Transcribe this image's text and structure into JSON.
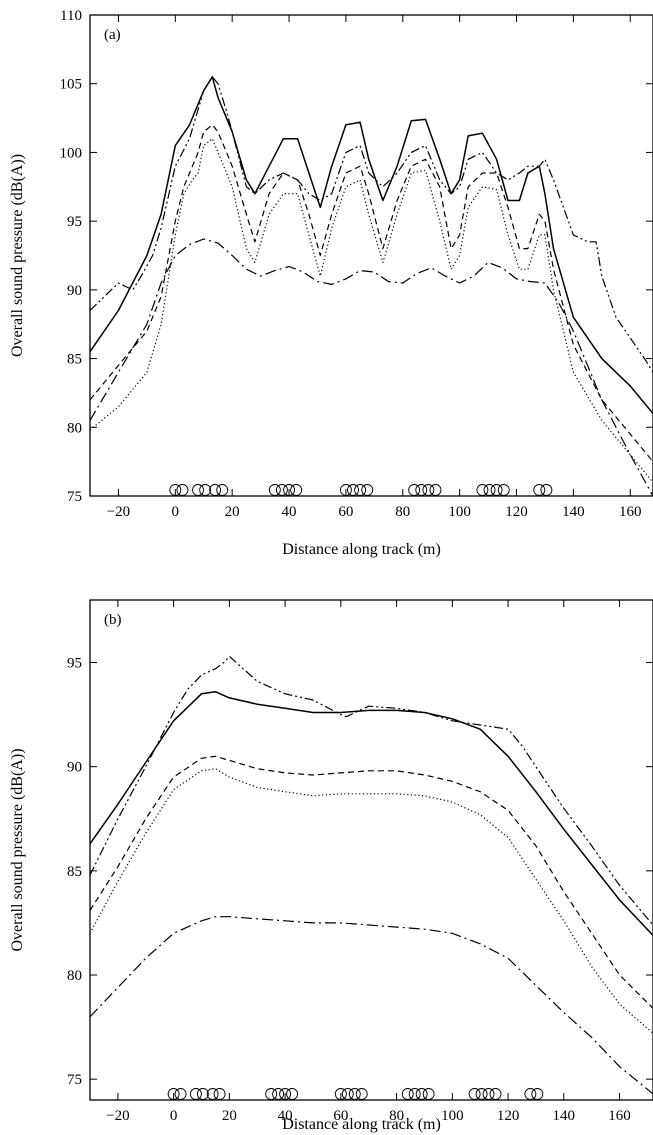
{
  "chart_data": [
    {
      "type": "line",
      "panel_label": "(a)",
      "xlabel": "Distance along track (m)",
      "ylabel": "Overall sound pressure (dB(A))",
      "xlim": [
        -30,
        168
      ],
      "ylim": [
        75,
        110
      ],
      "xticks": [
        -20,
        0,
        20,
        40,
        60,
        80,
        100,
        120,
        140,
        160
      ],
      "yticks": [
        75,
        80,
        85,
        90,
        95,
        100,
        105,
        110
      ],
      "grid": false,
      "legend": "none",
      "axle_markers": [
        0,
        2.5,
        8,
        10.5,
        14,
        16.5,
        35,
        37.5,
        40,
        42.5,
        60,
        62.5,
        65,
        67.5,
        84,
        86.5,
        89,
        91.5,
        108,
        110.5,
        113,
        115.5,
        128,
        130.5
      ],
      "series": [
        {
          "style": "solid",
          "x": [
            -30,
            -20,
            -10,
            -5,
            0,
            5,
            10,
            13,
            15,
            20,
            25,
            28,
            33,
            38,
            43,
            47,
            51,
            55,
            60,
            65,
            68,
            73,
            78,
            83,
            88,
            93,
            97,
            100,
            103,
            108,
            113,
            117,
            121,
            124,
            128,
            130,
            133,
            140,
            150,
            160,
            168
          ],
          "y": [
            85.5,
            88.5,
            92.5,
            95.5,
            100.5,
            102,
            104.5,
            105.5,
            104,
            101.5,
            98,
            97,
            99,
            101,
            101,
            98.5,
            96,
            99,
            102,
            102.2,
            99.5,
            96.5,
            99,
            102.3,
            102.4,
            99.5,
            97,
            98,
            101.2,
            101.4,
            99.5,
            96.5,
            96.5,
            98.5,
            99,
            97,
            93,
            88,
            85,
            83,
            81
          ]
        },
        {
          "style": "dash-dot-dot",
          "x": [
            -30,
            -25,
            -20,
            -15,
            -12,
            -8,
            -5,
            0,
            5,
            10,
            13,
            15,
            18,
            20,
            25,
            28,
            33,
            38,
            43,
            47,
            51,
            55,
            60,
            65,
            68,
            73,
            78,
            83,
            88,
            93,
            97,
            100,
            103,
            108,
            113,
            117,
            121,
            124,
            128,
            130,
            133,
            140,
            145,
            148,
            150,
            155,
            160,
            165,
            168
          ],
          "y": [
            88.5,
            89.5,
            90.5,
            90,
            91,
            92.5,
            94.5,
            99,
            101,
            104.5,
            105.5,
            105,
            103,
            101.5,
            97.5,
            97,
            98,
            98.5,
            98,
            97,
            96.5,
            97,
            100,
            100.5,
            98.5,
            97.5,
            98.5,
            100,
            100.5,
            98,
            97,
            97.5,
            99.5,
            100,
            98.5,
            98,
            98.5,
            99,
            99,
            99.5,
            98,
            94,
            93.5,
            93.5,
            91,
            88,
            86.5,
            85,
            84
          ]
        },
        {
          "style": "dashed",
          "x": [
            -30,
            -20,
            -10,
            -5,
            0,
            3,
            6,
            8,
            10,
            13,
            15,
            20,
            25,
            28,
            33,
            38,
            43,
            47,
            51,
            55,
            60,
            65,
            68,
            73,
            78,
            83,
            88,
            93,
            97,
            100,
            103,
            108,
            113,
            117,
            121,
            124,
            128,
            130,
            133,
            140,
            150,
            160,
            168
          ],
          "y": [
            82,
            84.5,
            87,
            89.5,
            95,
            97.5,
            99,
            100,
            101.5,
            102,
            101.5,
            99,
            95.5,
            93.5,
            97,
            98.5,
            98,
            95.5,
            92.5,
            95.5,
            98.5,
            99,
            97,
            93,
            96.5,
            99,
            99.5,
            97.5,
            93,
            94,
            97.5,
            98.5,
            98.5,
            96,
            93,
            93,
            95.5,
            95,
            91.5,
            86,
            82,
            79.5,
            77.5
          ]
        },
        {
          "style": "dotted",
          "x": [
            -30,
            -20,
            -10,
            -5,
            0,
            3,
            6,
            8,
            10,
            13,
            15,
            20,
            25,
            28,
            33,
            38,
            43,
            47,
            51,
            55,
            60,
            65,
            68,
            73,
            78,
            83,
            88,
            93,
            97,
            100,
            103,
            108,
            113,
            117,
            121,
            124,
            128,
            130,
            133,
            140,
            150,
            160,
            168
          ],
          "y": [
            79.8,
            81.5,
            84,
            87.5,
            94,
            97,
            98,
            98.5,
            100.5,
            101,
            100,
            97.5,
            93,
            92,
            95.5,
            97,
            97,
            94,
            91,
            94.5,
            97.5,
            98,
            95.5,
            92,
            95.5,
            98.5,
            98.7,
            95,
            91.5,
            92.5,
            96,
            97.5,
            97.3,
            94,
            91.5,
            91.5,
            94,
            94,
            90,
            84,
            80.5,
            78,
            76
          ]
        },
        {
          "style": "dash-dot",
          "x": [
            -30,
            -20,
            -10,
            -5,
            0,
            5,
            10,
            15,
            20,
            25,
            30,
            35,
            40,
            45,
            50,
            55,
            60,
            65,
            70,
            75,
            80,
            85,
            90,
            95,
            100,
            105,
            110,
            115,
            120,
            125,
            130,
            135,
            140,
            150,
            160,
            168
          ],
          "y": [
            80.5,
            84,
            87.5,
            90.5,
            92.5,
            93.3,
            93.7,
            93.4,
            92.5,
            91.5,
            91,
            91.4,
            91.7,
            91.3,
            90.6,
            90.4,
            90.8,
            91.4,
            91.3,
            90.6,
            90.5,
            91.2,
            91.6,
            91,
            90.5,
            91,
            92,
            91.6,
            90.8,
            90.6,
            90.5,
            89,
            87,
            82,
            78,
            75
          ]
        }
      ]
    },
    {
      "type": "line",
      "panel_label": "(b)",
      "xlabel": "Distance along track (m)",
      "ylabel": "Overall sound pressure (dB(A))",
      "xlim": [
        -30,
        172
      ],
      "ylim": [
        74,
        98
      ],
      "xticks": [
        -20,
        0,
        20,
        40,
        60,
        80,
        100,
        120,
        140,
        160
      ],
      "yticks": [
        75,
        80,
        85,
        90,
        95
      ],
      "grid": false,
      "legend": "none",
      "axle_markers": [
        0,
        2.5,
        8,
        10.5,
        14,
        16.5,
        35,
        37.5,
        40,
        42.5,
        60,
        62.5,
        65,
        67.5,
        84,
        86.5,
        89,
        91.5,
        108,
        110.5,
        113,
        115.5,
        128,
        130.5
      ],
      "series": [
        {
          "style": "solid",
          "x": [
            -30,
            -20,
            -10,
            0,
            10,
            15,
            20,
            30,
            40,
            50,
            60,
            70,
            80,
            90,
            100,
            110,
            120,
            130,
            140,
            150,
            160,
            172
          ],
          "y": [
            86.3,
            88.2,
            90.2,
            92.2,
            93.5,
            93.6,
            93.3,
            93,
            92.8,
            92.6,
            92.6,
            92.7,
            92.7,
            92.6,
            92.3,
            91.8,
            90.5,
            88.8,
            87,
            85.3,
            83.6,
            81.9
          ]
        },
        {
          "style": "dash-dot-dot",
          "x": [
            -30,
            -20,
            -10,
            0,
            5,
            10,
            15,
            18,
            20,
            25,
            30,
            40,
            50,
            60,
            62,
            70,
            80,
            90,
            100,
            110,
            120,
            125,
            130,
            140,
            150,
            160,
            172
          ],
          "y": [
            84.8,
            87.5,
            90,
            92.6,
            93.7,
            94.4,
            94.7,
            95,
            95.3,
            94.7,
            94.1,
            93.5,
            93.2,
            92.5,
            92.4,
            92.9,
            92.8,
            92.6,
            92.2,
            92,
            91.8,
            91,
            90,
            88,
            86.2,
            84.3,
            82.4
          ]
        },
        {
          "style": "dashed",
          "x": [
            -30,
            -20,
            -10,
            0,
            10,
            15,
            20,
            30,
            40,
            50,
            60,
            70,
            80,
            90,
            100,
            110,
            120,
            130,
            140,
            150,
            160,
            172
          ],
          "y": [
            83.1,
            85.2,
            87.5,
            89.5,
            90.4,
            90.5,
            90.3,
            89.9,
            89.7,
            89.6,
            89.7,
            89.8,
            89.8,
            89.6,
            89.3,
            88.8,
            87.9,
            86.2,
            84,
            82,
            80,
            78.4
          ]
        },
        {
          "style": "dotted",
          "x": [
            -30,
            -20,
            -10,
            0,
            10,
            15,
            20,
            30,
            40,
            50,
            60,
            70,
            80,
            90,
            100,
            110,
            120,
            130,
            140,
            150,
            160,
            172
          ],
          "y": [
            82,
            84.5,
            86.8,
            88.9,
            89.8,
            89.9,
            89.5,
            89,
            88.8,
            88.6,
            88.7,
            88.7,
            88.7,
            88.6,
            88.3,
            87.7,
            86.6,
            84.6,
            82.6,
            80.4,
            78.6,
            77.2
          ]
        },
        {
          "style": "dash-dot",
          "x": [
            -30,
            -20,
            -10,
            0,
            10,
            15,
            20,
            30,
            40,
            50,
            60,
            70,
            80,
            90,
            100,
            110,
            120,
            130,
            140,
            150,
            160,
            172
          ],
          "y": [
            78,
            79.4,
            80.8,
            82,
            82.6,
            82.8,
            82.8,
            82.7,
            82.6,
            82.5,
            82.5,
            82.4,
            82.3,
            82.2,
            82,
            81.5,
            80.8,
            79.5,
            78.2,
            77,
            75.6,
            74.3
          ]
        }
      ]
    }
  ]
}
